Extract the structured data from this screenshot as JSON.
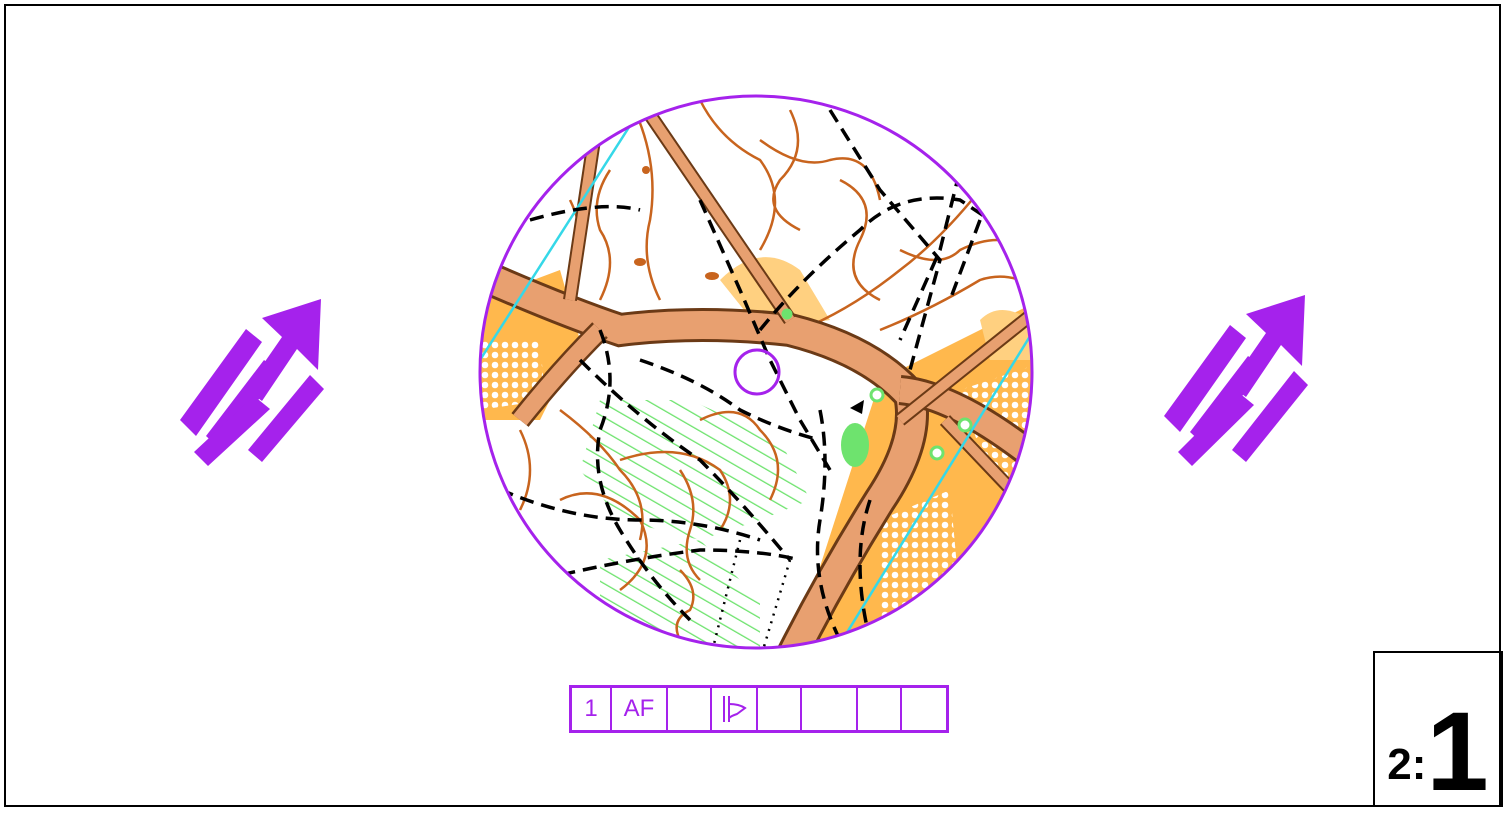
{
  "colors": {
    "accent": "#a522ec",
    "contour": "#c8641e",
    "road": "#e8a070",
    "open_land": "#ffb84d",
    "vegetation_green": "#6ee36e",
    "stream": "#35d8e8",
    "path": "#000000"
  },
  "north_arrow_icon": "double-north-arrow",
  "control_description": {
    "cells": [
      "1",
      "AF",
      "",
      "",
      "",
      "",
      "",
      ""
    ],
    "symbol_cell_icon": "re-entrant-icon"
  },
  "scale": {
    "small": "2:",
    "large": "1"
  }
}
